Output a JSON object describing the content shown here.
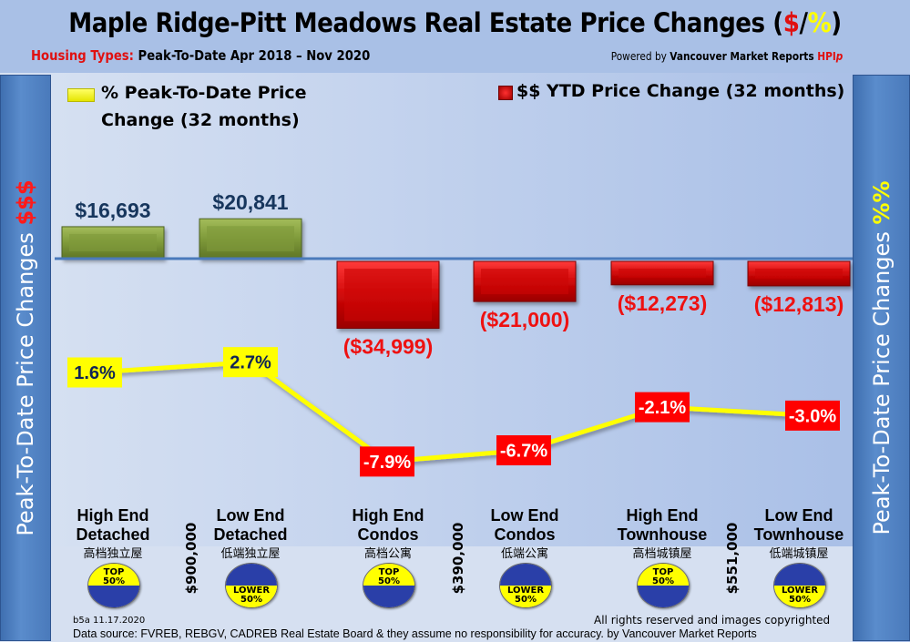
{
  "header": {
    "title_main": "Maple Ridge-Pitt Meadows Real Estate Price Changes (",
    "title_dollar": "$",
    "title_slash": "/",
    "title_pct": "%",
    "title_close": ")",
    "subtitle_label": "Housing Types:",
    "subtitle_text": " Peak-To-Date Apr 2018 – Nov 2020",
    "powered_prefix": "Powered by ",
    "powered_brand": "Vancouver Market Reports ",
    "powered_hpi": "HPI",
    "powered_p": "p"
  },
  "side_labels": {
    "left_text": "Peak-To-Date Price Changes ",
    "left_symbol": "$$$",
    "right_text": "Peak-To-Date  Price  Changes  ",
    "right_symbol": "%%"
  },
  "colors": {
    "positive_bar": "#7f9a3a",
    "negative_bar": "#d00808",
    "line": "#ffff00",
    "pos_label_bg": "#ffff00",
    "neg_label_bg": "#ff0000",
    "pos_dollar_text": "#17365d",
    "neg_dollar_text": "#ee1111",
    "baseline": "#4a7abb",
    "badge_yellow": "#ffff00",
    "badge_blue": "#2a3fa8"
  },
  "chart_data": {
    "type": "bar",
    "title": "Maple Ridge-Pitt Meadows Real Estate Price Changes ($/%)",
    "subtitle": "Housing Types: Peak-To-Date Apr 2018 – Nov 2020",
    "categories": [
      "High End Detached",
      "Low End Detached",
      "High End Condos",
      "Low End Condos",
      "High End Townhouse",
      "Low End Townhouse"
    ],
    "categories_cn": [
      "高档独立屋",
      "低端独立屋",
      "高档公寓",
      "低端公寓",
      "高档城镇屋",
      "低端城镇屋"
    ],
    "category_lines": [
      [
        "High End",
        "Detached"
      ],
      [
        "Low End",
        "Detached"
      ],
      [
        "High End",
        "Condos"
      ],
      [
        "Low End",
        "Condos"
      ],
      [
        "High End",
        "Townhouse"
      ],
      [
        "Low End",
        "Townhouse"
      ]
    ],
    "series": [
      {
        "name": "$$ YTD Price Change (32 months)",
        "type": "bar",
        "values": [
          16693,
          20841,
          -34999,
          -21000,
          -12273,
          -12813
        ],
        "labels": [
          "$16,693",
          "$20,841",
          "($34,999)",
          "($21,000)",
          "($12,273)",
          "($12,813)"
        ]
      },
      {
        "name": "% Peak-To-Date Price Change (32 months)",
        "type": "line",
        "values": [
          1.6,
          2.7,
          -7.9,
          -6.7,
          -2.1,
          -3.0
        ],
        "labels": [
          "1.6%",
          "2.7%",
          "-7.9%",
          "-6.7%",
          "-2.1%",
          "-3.0%"
        ]
      }
    ],
    "legend": [
      {
        "label_line1": "% Peak-To-Date Price",
        "label_line2": "Change (32 months)",
        "swatch": "yellow",
        "position": "top-left"
      },
      {
        "label_line1": "$$ YTD Price Change (32 months)",
        "swatch": "red",
        "position": "top-right"
      }
    ],
    "ylim_dollar": [
      -40000,
      40000
    ],
    "ylim_pct": [
      -10,
      10
    ],
    "grid": false,
    "xlabel": "",
    "ylabel_left": "Peak-To-Date Price Changes $$$",
    "ylabel_right": "Peak-To-Date Price Changes %%"
  },
  "segments": {
    "badges": [
      {
        "type": "top",
        "line1": "TOP",
        "line2": "50%"
      },
      {
        "type": "lower",
        "line1": "LOWER",
        "line2": "50%"
      },
      {
        "type": "top",
        "line1": "TOP",
        "line2": "50%"
      },
      {
        "type": "lower",
        "line1": "LOWER",
        "line2": "50%"
      },
      {
        "type": "top",
        "line1": "TOP",
        "line2": "50%"
      },
      {
        "type": "lower",
        "line1": "LOWER",
        "line2": "50%"
      }
    ],
    "thresholds": [
      "$900,000",
      "$390,000",
      "$551,000"
    ]
  },
  "footer": {
    "code": "b5a 11.17.2020",
    "rights": "All rights reserved and  images copyrighted",
    "source": "Data source: FVREB, REBGV, CADREB Real Estate Board & they assume no responsibility for accuracy. by Vancouver Market Reports"
  }
}
